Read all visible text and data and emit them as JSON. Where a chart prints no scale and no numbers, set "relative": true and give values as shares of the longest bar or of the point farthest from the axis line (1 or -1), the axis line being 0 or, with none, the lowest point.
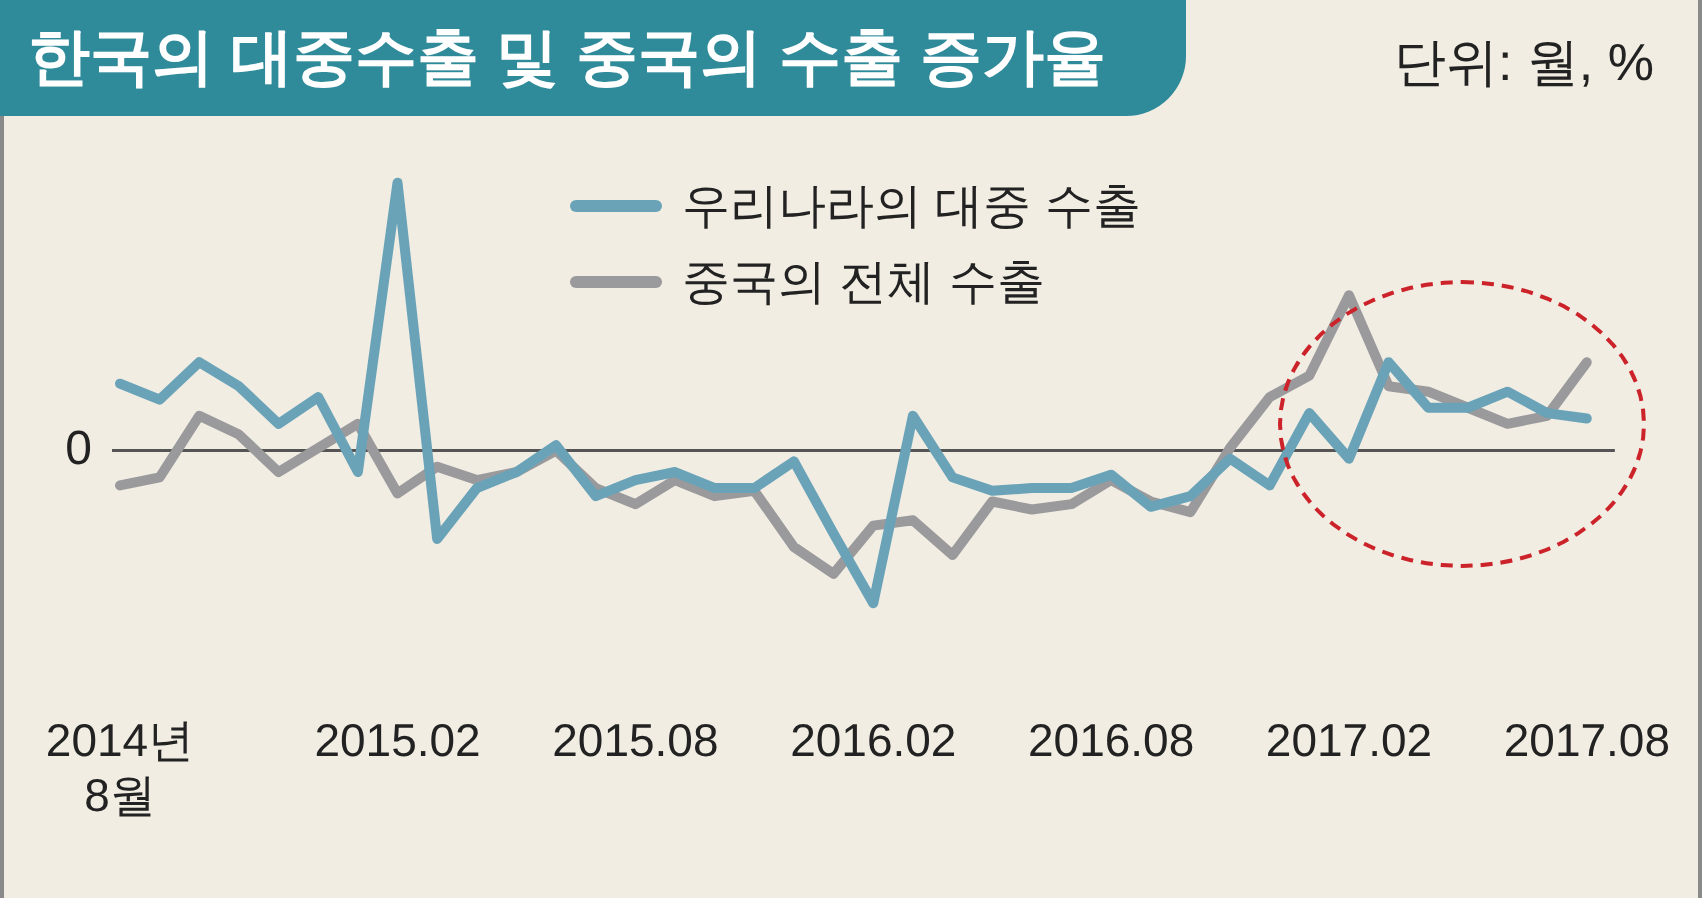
{
  "chart_data": {
    "type": "line",
    "title": "한국의 대중수출 및 중국의 수출 증가율",
    "subtitle": "단위: 월, %",
    "categories": [
      "2014년 8월",
      null,
      null,
      null,
      null,
      null,
      null,
      "2015.02",
      null,
      null,
      null,
      null,
      null,
      "2015.08",
      null,
      null,
      null,
      null,
      null,
      "2016.02",
      null,
      null,
      null,
      null,
      null,
      "2016.08",
      null,
      null,
      null,
      null,
      null,
      "2017.02",
      null,
      null,
      null,
      null,
      null,
      "2017.08"
    ],
    "relative": true,
    "series": [
      {
        "name": "우리나라의 대중 수출",
        "color": "#6aa3b8",
        "values": [
          0.25,
          0.19,
          0.33,
          0.24,
          0.1,
          0.2,
          -0.08,
          1,
          -0.33,
          -0.14,
          -0.08,
          0.02,
          -0.17,
          -0.11,
          -0.08,
          -0.14,
          -0.14,
          -0.04,
          -0.31,
          -0.57,
          0.13,
          -0.1,
          -0.15,
          -0.14,
          -0.14,
          -0.09,
          -0.21,
          -0.17,
          -0.03,
          -0.13,
          0.14,
          -0.03,
          0.33,
          0.16,
          0.16,
          0.22,
          0.14,
          0.12
        ]
      },
      {
        "name": "중국의 전체 수출",
        "color": "#9a9a9c",
        "values": [
          -0.13,
          -0.1,
          0.13,
          0.06,
          -0.08,
          0.01,
          0.1,
          -0.16,
          -0.06,
          -0.11,
          -0.08,
          0,
          -0.14,
          -0.2,
          -0.11,
          -0.17,
          -0.15,
          -0.36,
          -0.46,
          -0.28,
          -0.26,
          -0.39,
          -0.19,
          -0.22,
          -0.2,
          -0.11,
          -0.19,
          -0.23,
          0.01,
          0.2,
          0.28,
          0.58,
          0.24,
          0.22,
          0.16,
          0.1,
          0.13,
          0.33
        ]
      }
    ],
    "ref_lines": [
      {
        "axis": "y",
        "value": 0,
        "label": "0",
        "color": "#555555"
      }
    ],
    "legend": "top",
    "grid": false,
    "marker": "none",
    "line_style": "solid"
  }
}
